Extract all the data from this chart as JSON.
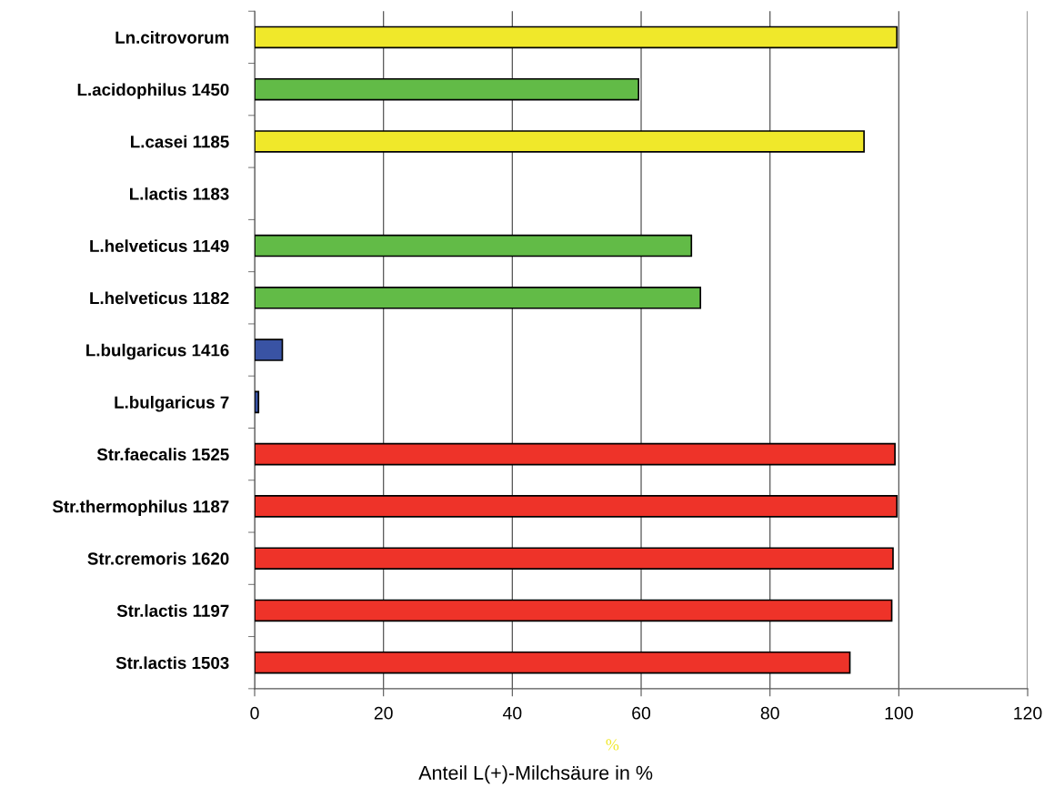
{
  "chart_data": {
    "type": "bar",
    "orientation": "horizontal",
    "categories": [
      "Ln.citrovorum",
      "L.acidophilus 1450",
      "L.casei 1185",
      "L.lactis 1183",
      "L.helveticus 1149",
      "L.helveticus 1182",
      "L.bulgaricus 1416",
      "L.bulgaricus 7",
      "Str.faecalis 1525",
      "Str.thermophilus 1187",
      "Str.cremoris 1620",
      "Str.lactis 1197",
      "Str.lactis 1503"
    ],
    "values": [
      99.7,
      59.6,
      94.6,
      null,
      67.8,
      69.2,
      4.3,
      0.6,
      99.4,
      99.7,
      99.1,
      98.9,
      92.4
    ],
    "colors": [
      "#f0e82a",
      "#62bb47",
      "#f0e82a",
      "#62bb47",
      "#62bb47",
      "#62bb47",
      "#3953a4",
      "#3953a4",
      "#ee3329",
      "#ee3329",
      "#ee3329",
      "#ee3329",
      "#ee3329"
    ],
    "xlabel": "Anteil L(+)-Milchsäure in %",
    "xlim": [
      0,
      120
    ],
    "xticks": [
      0,
      20,
      40,
      60,
      80,
      100,
      120
    ],
    "grid": "x",
    "annotations": [
      "%"
    ]
  }
}
